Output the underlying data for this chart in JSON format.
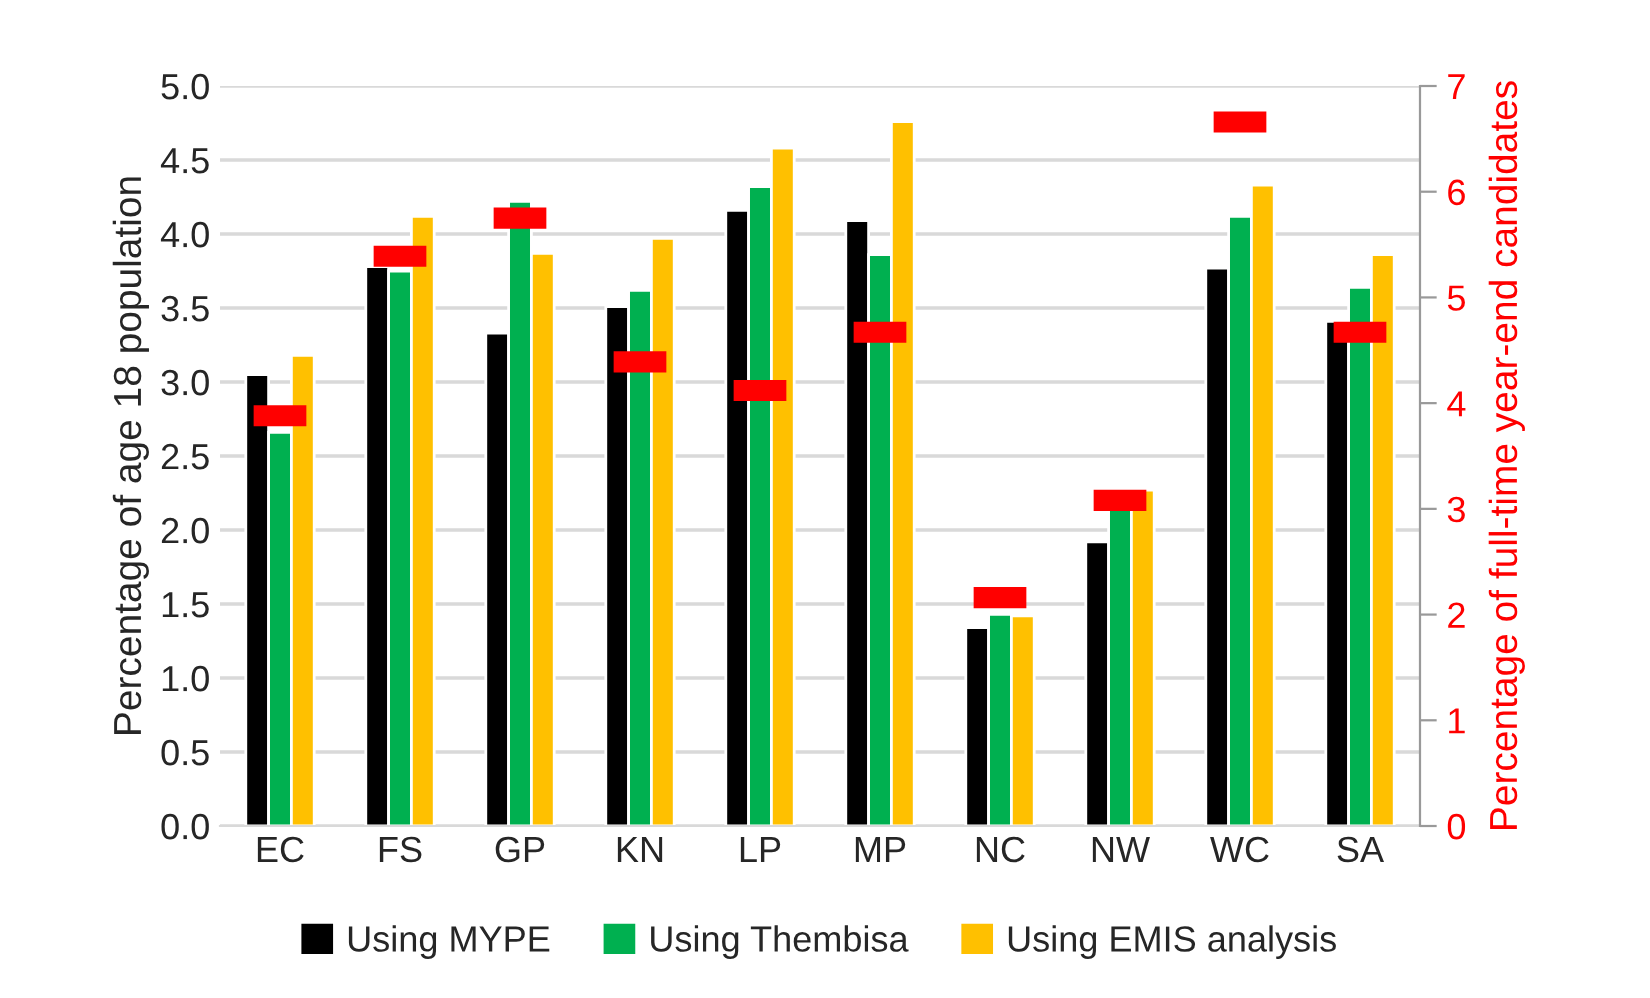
{
  "chart_data": {
    "type": "bar",
    "ylabel": "Percentage of age 18 population",
    "y2label": "Percentage of full-time year-end candidates",
    "categories": [
      "EC",
      "FS",
      "GP",
      "KN",
      "LP",
      "MP",
      "NC",
      "NW",
      "WC",
      "SA"
    ],
    "series": [
      {
        "name": "Using MYPE",
        "color": "#000000",
        "values": [
          3.05,
          3.78,
          3.33,
          3.51,
          4.16,
          4.09,
          1.34,
          1.92,
          3.77,
          3.41
        ]
      },
      {
        "name": "Using Thembisa",
        "color": "#00b050",
        "values": [
          2.66,
          3.75,
          4.22,
          3.62,
          4.32,
          3.86,
          1.43,
          2.16,
          4.12,
          3.64
        ]
      },
      {
        "name": "Using EMIS analysis",
        "color": "#ffc000",
        "values": [
          3.18,
          4.12,
          3.87,
          3.97,
          4.58,
          4.76,
          1.42,
          2.27,
          4.33,
          3.86
        ]
      },
      {
        "type": "scatter",
        "axis": "y2",
        "color": "#ff0000",
        "values": [
          3.88,
          5.39,
          5.75,
          4.39,
          4.12,
          4.67,
          2.16,
          3.08,
          6.66,
          4.67
        ]
      }
    ],
    "ylim": [
      0,
      5
    ],
    "yticks": [
      {
        "value": 0,
        "label": "0.0"
      },
      {
        "value": 0.5,
        "label": "0.5"
      },
      {
        "value": 1,
        "label": "1.0"
      },
      {
        "value": 1.5,
        "label": "1.5"
      },
      {
        "value": 2,
        "label": "2.0"
      },
      {
        "value": 2.5,
        "label": "2.5"
      },
      {
        "value": 3,
        "label": "3.0"
      },
      {
        "value": 3.5,
        "label": "3.5"
      },
      {
        "value": 4,
        "label": "4.0"
      },
      {
        "value": 4.5,
        "label": "4.5"
      },
      {
        "value": 5,
        "label": "5.0"
      }
    ],
    "y2lim": [
      0,
      7
    ],
    "y2ticks": [
      0,
      1,
      2,
      3,
      4,
      5,
      6,
      7
    ],
    "grid": "y",
    "legend": "bottom"
  }
}
